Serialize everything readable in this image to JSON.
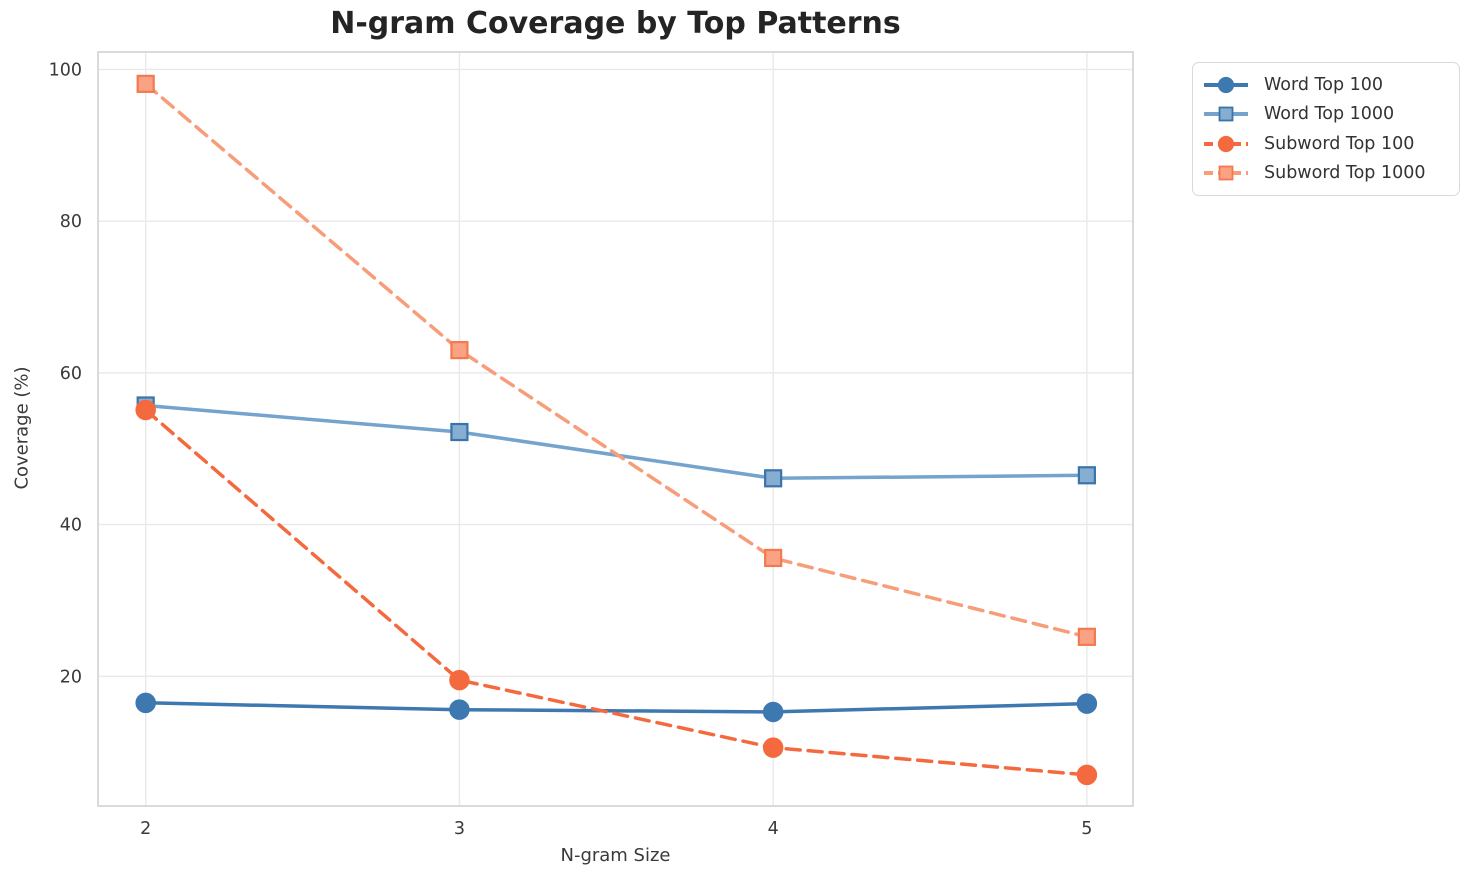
{
  "figure": {
    "background": "#ffffff"
  },
  "chart_data": {
    "type": "line",
    "title": "N-gram Coverage by Top Patterns",
    "xlabel": "N-gram Size",
    "ylabel": "Coverage (%)",
    "x": [
      2,
      3,
      4,
      5
    ],
    "xticks": [
      2,
      3,
      4,
      5
    ],
    "yticks": [
      20,
      40,
      60,
      80,
      100
    ],
    "xlim": [
      1.848,
      5.147
    ],
    "ylim": [
      2.9,
      102.3
    ],
    "grid": true,
    "legend_position": "outside-top-right",
    "series": [
      {
        "name": "Word Top 100",
        "values": [
          16.5,
          15.6,
          15.3,
          16.4
        ],
        "color": "#3d78b0",
        "marker": "circle",
        "marker_fill": "#3d78b0",
        "marker_edge": "#3d78b0",
        "line_style": "solid"
      },
      {
        "name": "Word Top 1000",
        "values": [
          55.7,
          52.2,
          46.1,
          46.5
        ],
        "color": "#74a3cd",
        "marker": "square",
        "marker_fill": "#86add2",
        "marker_edge": "#3a74a8",
        "line_style": "solid"
      },
      {
        "name": "Subword Top 100",
        "values": [
          55.1,
          19.5,
          10.6,
          7.0
        ],
        "color": "#f4693e",
        "marker": "circle",
        "marker_fill": "#f4693e",
        "marker_edge": "#f4693e",
        "line_style": "dashed"
      },
      {
        "name": "Subword Top 1000",
        "values": [
          98.1,
          63.0,
          35.6,
          25.2
        ],
        "color": "#f89d7a",
        "marker": "square",
        "marker_fill": "#f9a384",
        "marker_edge": "#f5794e",
        "line_style": "dashed"
      }
    ]
  },
  "colors": {
    "grid": "#e9e9e9",
    "spine": "#d6d6d6",
    "tick_text": "#3a3a3a",
    "title_text": "#242424",
    "legend_border": "#d9d9d9"
  }
}
